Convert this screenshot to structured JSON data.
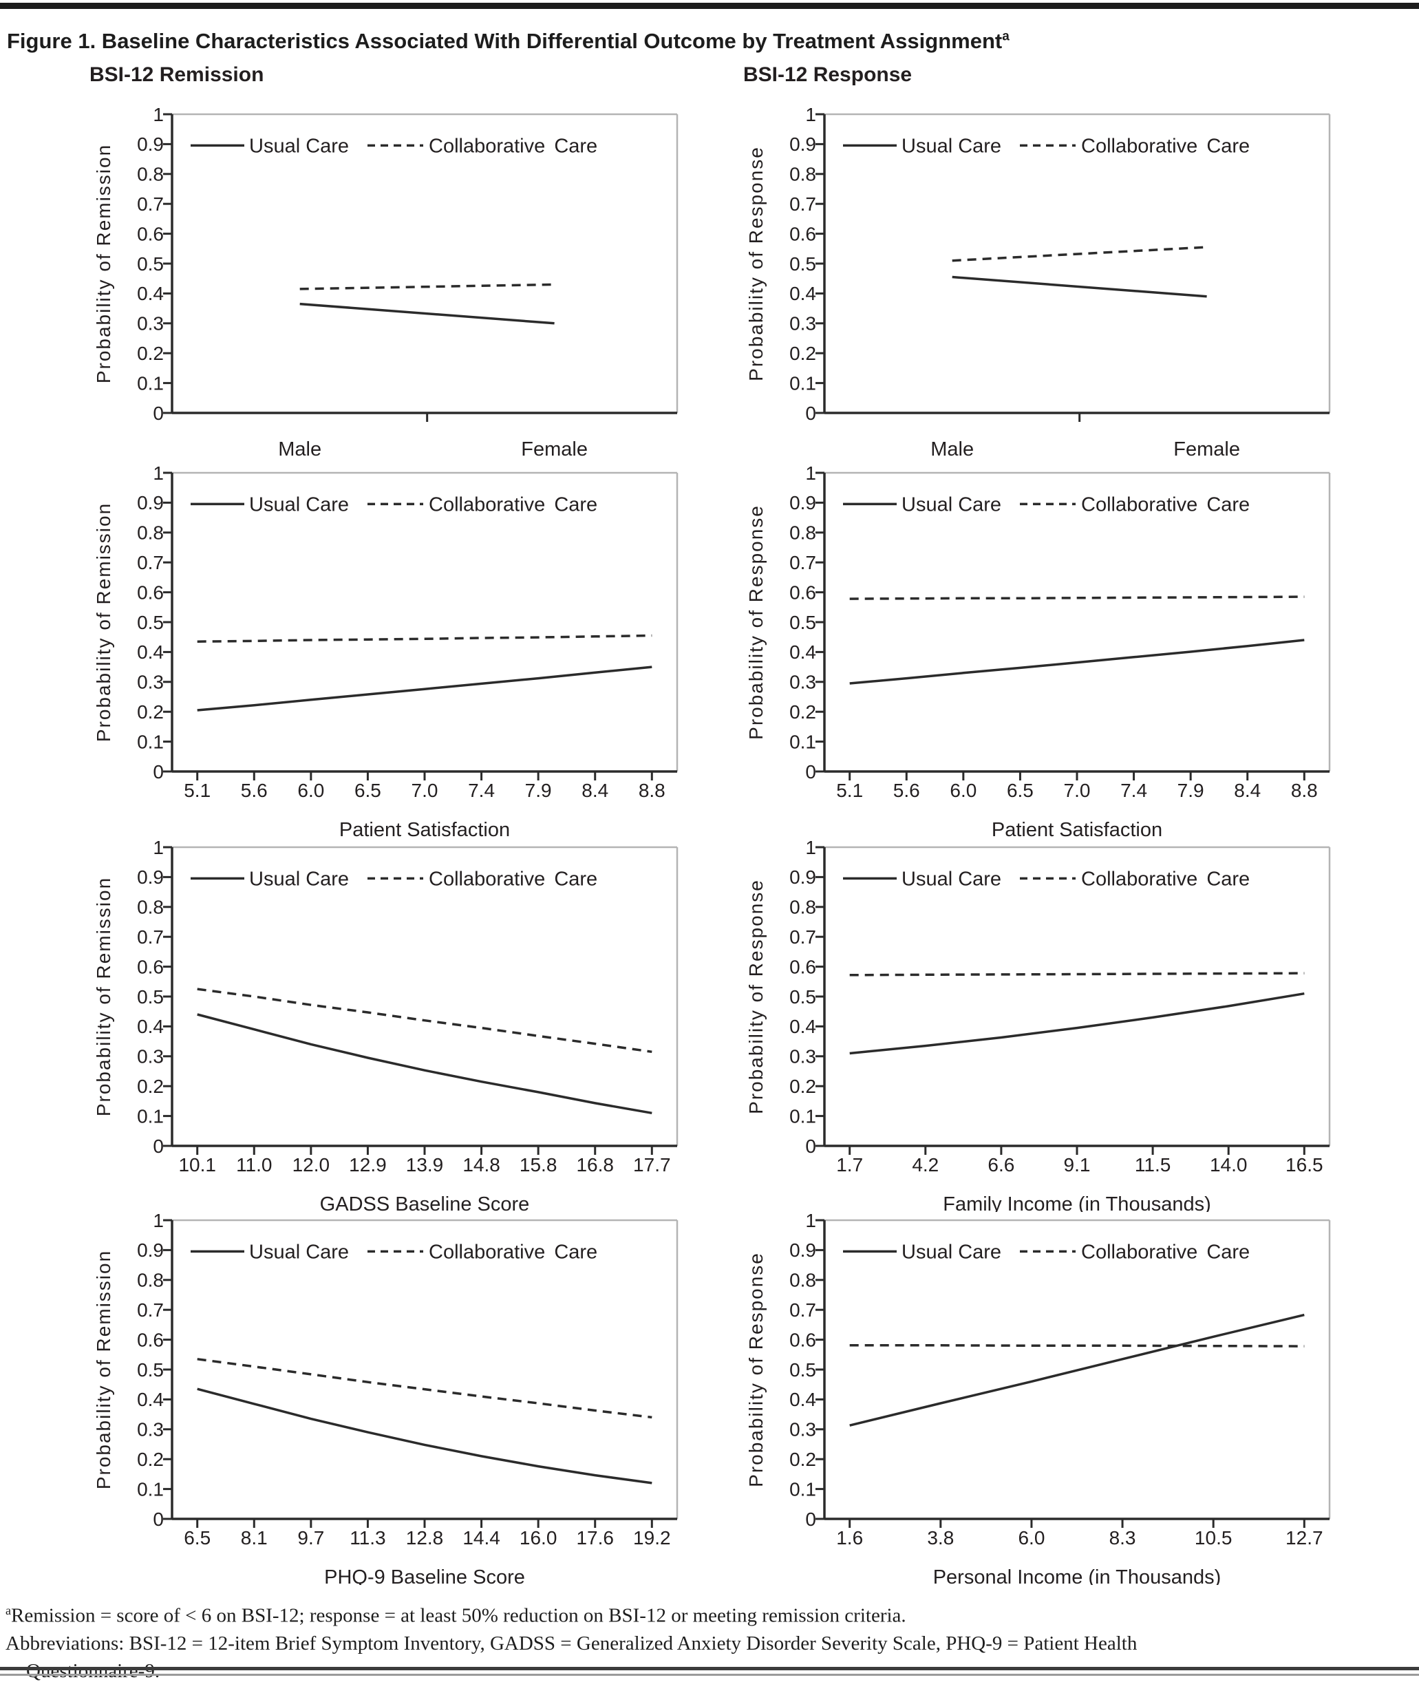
{
  "page": {
    "title": "Figure 1. Baseline Characteristics Associated With Differential Outcome by Treatment Assignment",
    "title_superscript": "a",
    "column_headers": {
      "left": "BSI-12 Remission",
      "right": "BSI-12 Response"
    },
    "footnotes": {
      "line1_superscript": "a",
      "line1": "Remission = score of < 6 on BSI-12; response = at least 50% reduction on BSI-12 or meeting remission criteria.",
      "line2": "Abbreviations: BSI-12 = 12-item Brief Symptom Inventory, GADSS = Generalized Anxiety Disorder Severity Scale, PHQ-9 = Patient Health",
      "line3": "Questionnaire-9."
    }
  },
  "legend": {
    "usual_care": "Usual Care",
    "collaborative_care": "Collaborative Care"
  },
  "colors": {
    "line": "#2b2b2b",
    "text": "#231f20",
    "frame": "#b4b4b4",
    "top_bar": "#1c1c1c"
  },
  "chart_data": [
    {
      "id": "remission-by-sex",
      "type": "line",
      "ylabel": "Probability of Remission",
      "xlabel": null,
      "x_type": "category",
      "x_tick_labels": [
        "Male",
        "Female"
      ],
      "ylim": [
        0,
        1
      ],
      "yticks": [
        "1",
        "0.9",
        "0.8",
        "0.7",
        "0.6",
        "0.5",
        "0.4",
        "0.3",
        "0.2",
        "0.1",
        "0"
      ],
      "series": [
        {
          "name": "Usual Care",
          "style": "solid",
          "values": [
            0.365,
            0.3
          ]
        },
        {
          "name": "Collaborative Care",
          "style": "dashed",
          "values": [
            0.415,
            0.43
          ]
        }
      ]
    },
    {
      "id": "response-by-sex",
      "type": "line",
      "ylabel": "Probability of Response",
      "xlabel": null,
      "x_type": "category",
      "x_tick_labels": [
        "Male",
        "Female"
      ],
      "ylim": [
        0,
        1
      ],
      "yticks": [
        "1",
        "0.9",
        "0.8",
        "0.7",
        "0.6",
        "0.5",
        "0.4",
        "0.3",
        "0.2",
        "0.1",
        "0"
      ],
      "series": [
        {
          "name": "Usual Care",
          "style": "solid",
          "values": [
            0.455,
            0.39
          ]
        },
        {
          "name": "Collaborative Care",
          "style": "dashed",
          "values": [
            0.51,
            0.555
          ]
        }
      ]
    },
    {
      "id": "remission-by-patient-satisfaction",
      "type": "line",
      "ylabel": "Probability of Remission",
      "xlabel": "Patient Satisfaction",
      "x_type": "numeric",
      "x_tick_labels": [
        "5.1",
        "5.6",
        "6.0",
        "6.5",
        "7.0",
        "7.4",
        "7.9",
        "8.4",
        "8.8"
      ],
      "ylim": [
        0,
        1
      ],
      "yticks": [
        "1",
        "0.9",
        "0.8",
        "0.7",
        "0.6",
        "0.5",
        "0.4",
        "0.3",
        "0.2",
        "0.1",
        "0"
      ],
      "series": [
        {
          "name": "Usual Care",
          "style": "solid",
          "values": [
            0.205,
            0.222,
            0.24,
            0.258,
            0.276,
            0.294,
            0.312,
            0.331,
            0.35
          ]
        },
        {
          "name": "Collaborative Care",
          "style": "dashed",
          "values": [
            0.435,
            0.437,
            0.44,
            0.442,
            0.444,
            0.447,
            0.449,
            0.452,
            0.455
          ]
        }
      ]
    },
    {
      "id": "response-by-patient-satisfaction",
      "type": "line",
      "ylabel": "Probability of Response",
      "xlabel": "Patient Satisfaction",
      "x_type": "numeric",
      "x_tick_labels": [
        "5.1",
        "5.6",
        "6.0",
        "6.5",
        "7.0",
        "7.4",
        "7.9",
        "8.4",
        "8.8"
      ],
      "ylim": [
        0,
        1
      ],
      "yticks": [
        "1",
        "0.9",
        "0.8",
        "0.7",
        "0.6",
        "0.5",
        "0.4",
        "0.3",
        "0.2",
        "0.1",
        "0"
      ],
      "series": [
        {
          "name": "Usual Care",
          "style": "solid",
          "values": [
            0.295,
            0.312,
            0.33,
            0.347,
            0.365,
            0.383,
            0.401,
            0.42,
            0.44
          ]
        },
        {
          "name": "Collaborative Care",
          "style": "dashed",
          "values": [
            0.578,
            0.579,
            0.58,
            0.58,
            0.581,
            0.582,
            0.583,
            0.584,
            0.585
          ]
        }
      ]
    },
    {
      "id": "remission-by-gadss",
      "type": "line",
      "ylabel": "Probability of Remission",
      "xlabel": "GADSS Baseline Score",
      "x_type": "numeric",
      "x_tick_labels": [
        "10.1",
        "11.0",
        "12.0",
        "12.9",
        "13.9",
        "14.8",
        "15.8",
        "16.8",
        "17.7"
      ],
      "ylim": [
        0,
        1
      ],
      "yticks": [
        "1",
        "0.9",
        "0.8",
        "0.7",
        "0.6",
        "0.5",
        "0.4",
        "0.3",
        "0.2",
        "0.1",
        "0"
      ],
      "series": [
        {
          "name": "Usual Care",
          "style": "solid",
          "values": [
            0.44,
            0.39,
            0.34,
            0.295,
            0.253,
            0.215,
            0.18,
            0.143,
            0.11
          ]
        },
        {
          "name": "Collaborative Care",
          "style": "dashed",
          "values": [
            0.525,
            0.5,
            0.472,
            0.447,
            0.42,
            0.395,
            0.368,
            0.342,
            0.315
          ]
        }
      ]
    },
    {
      "id": "response-by-family-income",
      "type": "line",
      "ylabel": "Probability of Response",
      "xlabel": "Family Income (in Thousands)",
      "x_type": "numeric",
      "x_tick_labels": [
        "1.7",
        "4.2",
        "6.6",
        "9.1",
        "11.5",
        "14.0",
        "16.5"
      ],
      "ylim": [
        0,
        1
      ],
      "yticks": [
        "1",
        "0.9",
        "0.8",
        "0.7",
        "0.6",
        "0.5",
        "0.4",
        "0.3",
        "0.2",
        "0.1",
        "0"
      ],
      "series": [
        {
          "name": "Usual Care",
          "style": "solid",
          "values": [
            0.31,
            0.335,
            0.363,
            0.395,
            0.43,
            0.468,
            0.51
          ]
        },
        {
          "name": "Collaborative Care",
          "style": "dashed",
          "values": [
            0.572,
            0.573,
            0.574,
            0.575,
            0.576,
            0.577,
            0.578
          ]
        }
      ]
    },
    {
      "id": "remission-by-phq9",
      "type": "line",
      "ylabel": "Probability of Remission",
      "xlabel": "PHQ-9 Baseline Score",
      "x_type": "numeric",
      "x_tick_labels": [
        "6.5",
        "8.1",
        "9.7",
        "11.3",
        "12.8",
        "14.4",
        "16.0",
        "17.6",
        "19.2"
      ],
      "ylim": [
        0,
        1
      ],
      "yticks": [
        "1",
        "0.9",
        "0.8",
        "0.7",
        "0.6",
        "0.5",
        "0.4",
        "0.3",
        "0.2",
        "0.1",
        "0"
      ],
      "series": [
        {
          "name": "Usual Care",
          "style": "solid",
          "values": [
            0.435,
            0.385,
            0.335,
            0.29,
            0.248,
            0.21,
            0.176,
            0.146,
            0.12
          ]
        },
        {
          "name": "Collaborative Care",
          "style": "dashed",
          "values": [
            0.535,
            0.51,
            0.484,
            0.458,
            0.434,
            0.41,
            0.387,
            0.363,
            0.34
          ]
        }
      ]
    },
    {
      "id": "response-by-personal-income",
      "type": "line",
      "ylabel": "Probability of Response",
      "xlabel": "Personal Income (in Thousands)",
      "x_type": "numeric",
      "x_tick_labels": [
        "1.6",
        "3.8",
        "6.0",
        "8.3",
        "10.5",
        "12.7"
      ],
      "ylim": [
        0,
        1
      ],
      "yticks": [
        "1",
        "0.9",
        "0.8",
        "0.7",
        "0.6",
        "0.5",
        "0.4",
        "0.3",
        "0.2",
        "0.1",
        "0"
      ],
      "series": [
        {
          "name": "Usual Care",
          "style": "solid",
          "values": [
            0.313,
            0.387,
            0.46,
            0.535,
            0.61,
            0.683
          ]
        },
        {
          "name": "Collaborative Care",
          "style": "dashed",
          "values": [
            0.581,
            0.581,
            0.58,
            0.58,
            0.579,
            0.578
          ]
        }
      ]
    }
  ]
}
